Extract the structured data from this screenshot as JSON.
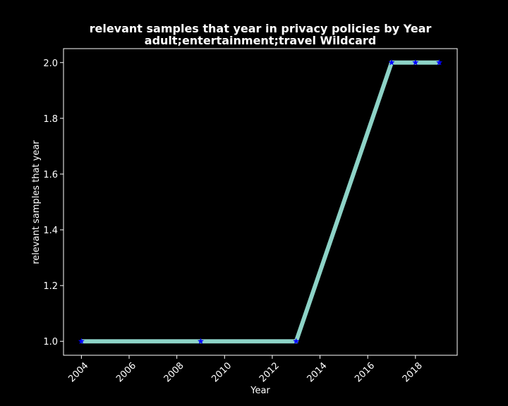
{
  "chart_data": {
    "type": "line",
    "title": "relevant samples that year in privacy policies by Year",
    "subtitle": "adult;entertainment;travel Wildcard",
    "xlabel": "Year",
    "ylabel": "relevant samples that year",
    "xlim": [
      2003.25,
      2019.75
    ],
    "ylim": [
      0.95,
      2.05
    ],
    "xticks": [
      2004,
      2006,
      2008,
      2010,
      2012,
      2014,
      2016,
      2018
    ],
    "yticks": [
      1.0,
      1.2,
      1.4,
      1.6,
      1.8,
      2.0
    ],
    "ytick_labels": [
      "1.0",
      "1.2",
      "1.4",
      "1.6",
      "1.8",
      "2.0"
    ],
    "grid": false,
    "background_color": "#000000",
    "series": [
      {
        "line_color": "#8dd3c7",
        "marker": "star",
        "marker_color": "#0000ff",
        "x": [
          2004,
          2009,
          2013,
          2017,
          2018,
          2019
        ],
        "y": [
          1,
          1,
          1,
          2,
          2,
          2
        ]
      }
    ]
  }
}
